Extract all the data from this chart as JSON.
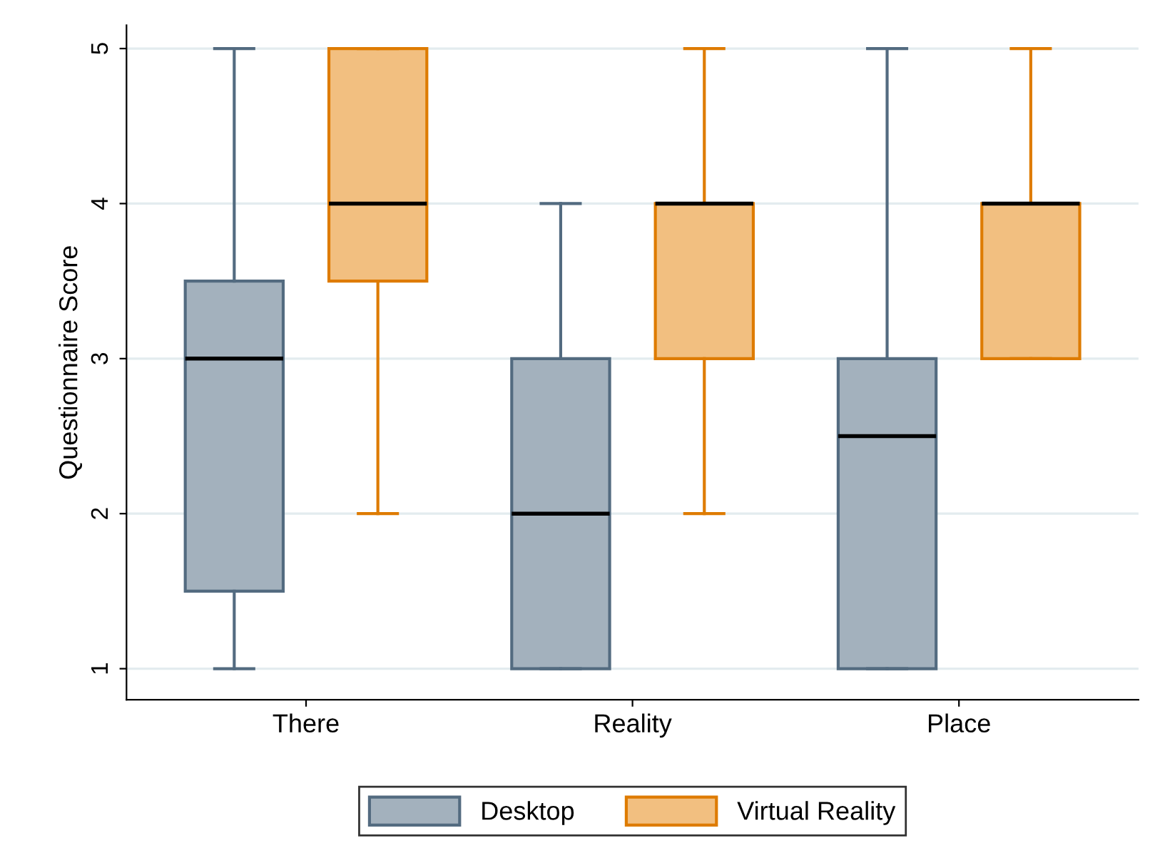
{
  "chart_data": {
    "type": "box",
    "ylabel": "Questionnaire Score",
    "categories": [
      "There",
      "Reality",
      "Place"
    ],
    "series": [
      {
        "name": "Desktop",
        "color": "#a3b1bd",
        "boxes": [
          {
            "low": 1,
            "q1": 1.5,
            "median": 3,
            "q3": 3.5,
            "high": 5
          },
          {
            "low": 1,
            "q1": 1,
            "median": 2,
            "q3": 3,
            "high": 4
          },
          {
            "low": 1,
            "q1": 1,
            "median": 2.5,
            "q3": 3,
            "high": 5
          }
        ]
      },
      {
        "name": "Virtual Reality",
        "color": "#f2bf80",
        "boxes": [
          {
            "low": 2,
            "q1": 3.5,
            "median": 4,
            "q3": 5,
            "high": 5
          },
          {
            "low": 2,
            "q1": 3,
            "median": 4,
            "q3": 4,
            "high": 5
          },
          {
            "low": 3,
            "q1": 3,
            "median": 4,
            "q3": 4,
            "high": 5
          }
        ]
      }
    ],
    "ylim": [
      0.8,
      5.15
    ],
    "yticks": [
      1,
      2,
      3,
      4,
      5
    ],
    "grid": "y",
    "legend": "bottom"
  }
}
